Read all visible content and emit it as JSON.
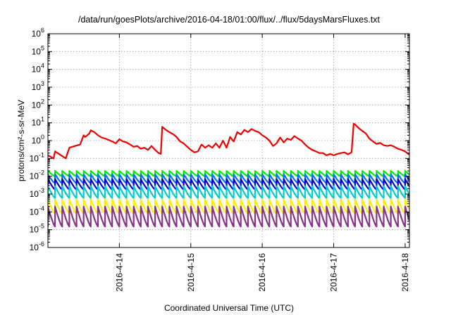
{
  "chart_data": {
    "type": "line",
    "title": "/data/run/goesPlots/archive/2016-04-18/01:00/flux/../flux/5daysMarsFluxes.txt",
    "xlabel": "Coordinated Universal Time (UTC)",
    "ylabel": "protons/cm²-s-sr-MeV",
    "yscale": "log",
    "ylim": [
      1e-06,
      1000000.0
    ],
    "xlim_days": [
      13.0,
      18.06
    ],
    "xaxis_origin_date": "2016-04-13",
    "y_ticks": [
      {
        "v": 1e-06,
        "base": "10",
        "exp": "-6"
      },
      {
        "v": 1e-05,
        "base": "10",
        "exp": "-5"
      },
      {
        "v": 0.0001,
        "base": "10",
        "exp": "-4"
      },
      {
        "v": 0.001,
        "base": "10",
        "exp": "-3"
      },
      {
        "v": 0.01,
        "base": "10",
        "exp": "-2"
      },
      {
        "v": 0.1,
        "base": "10",
        "exp": "-1"
      },
      {
        "v": 1.0,
        "base": "10",
        "exp": "0"
      },
      {
        "v": 10.0,
        "base": "10",
        "exp": "1"
      },
      {
        "v": 100.0,
        "base": "10",
        "exp": "2"
      },
      {
        "v": 1000.0,
        "base": "10",
        "exp": "3"
      },
      {
        "v": 10000.0,
        "base": "10",
        "exp": "4"
      },
      {
        "v": 100000.0,
        "base": "10",
        "exp": "5"
      },
      {
        "v": 1000000.0,
        "base": "10",
        "exp": "6"
      }
    ],
    "x_ticks": [
      {
        "d": 14,
        "label": "2016-4-14"
      },
      {
        "d": 15,
        "label": "2016-4-15"
      },
      {
        "d": 16,
        "label": "2016-4-16"
      },
      {
        "d": 17,
        "label": "2016-4-17"
      },
      {
        "d": 18,
        "label": "2016-4-18"
      }
    ],
    "grid": true,
    "legend": "none",
    "series": [
      {
        "color": "#ee0000",
        "x": [
          13.0,
          13.08,
          13.1,
          13.25,
          13.3,
          13.45,
          13.5,
          13.52,
          13.58,
          13.6,
          13.65,
          13.7,
          13.75,
          13.8,
          13.85,
          13.9,
          13.95,
          14.0,
          14.05,
          14.1,
          14.15,
          14.2,
          14.25,
          14.3,
          14.35,
          14.4,
          14.45,
          14.5,
          14.55,
          14.58,
          14.6,
          14.65,
          14.7,
          14.75,
          14.8,
          14.85,
          14.9,
          14.95,
          15.0,
          15.05,
          15.1,
          15.15,
          15.2,
          15.25,
          15.3,
          15.35,
          15.4,
          15.45,
          15.5,
          15.55,
          15.6,
          15.65,
          15.7,
          15.75,
          15.8,
          15.85,
          15.9,
          15.95,
          16.0,
          16.05,
          16.1,
          16.15,
          16.2,
          16.25,
          16.3,
          16.35,
          16.4,
          16.45,
          16.5,
          16.55,
          16.6,
          16.65,
          16.7,
          16.75,
          16.8,
          16.85,
          16.9,
          16.95,
          17.0,
          17.05,
          17.1,
          17.15,
          17.2,
          17.25,
          17.28,
          17.3,
          17.35,
          17.4,
          17.45,
          17.5,
          17.55,
          17.6,
          17.65,
          17.7,
          17.75,
          17.8,
          17.85,
          17.9,
          17.95,
          18.0,
          18.06
        ],
        "y": [
          0.15,
          0.1,
          0.25,
          0.1,
          0.4,
          0.6,
          2.0,
          1.6,
          2.5,
          3.8,
          3.0,
          2.0,
          1.5,
          1.3,
          1.1,
          0.9,
          0.7,
          1.2,
          0.9,
          0.8,
          0.6,
          0.45,
          0.5,
          0.35,
          0.4,
          0.3,
          0.5,
          0.3,
          0.2,
          0.18,
          6.0,
          4.0,
          3.0,
          2.3,
          1.6,
          0.9,
          0.7,
          0.45,
          0.3,
          0.22,
          0.25,
          0.6,
          0.4,
          0.55,
          0.4,
          0.7,
          0.4,
          1.0,
          0.4,
          1.6,
          0.9,
          3.0,
          2.2,
          4.0,
          3.0,
          4.5,
          3.5,
          3.0,
          2.0,
          1.5,
          1.0,
          0.5,
          0.7,
          1.5,
          0.8,
          1.3,
          1.1,
          1.8,
          1.3,
          1.0,
          0.6,
          0.4,
          0.3,
          0.25,
          0.2,
          0.2,
          0.15,
          0.18,
          0.15,
          0.18,
          0.2,
          0.22,
          0.17,
          0.22,
          9.0,
          8.0,
          5.0,
          3.5,
          2.5,
          1.3,
          0.9,
          0.65,
          0.75,
          0.55,
          0.5,
          0.55,
          0.45,
          0.35,
          0.3,
          0.25,
          0.16
        ]
      }
    ],
    "periodic_series": [
      {
        "color": "#00ee00",
        "low": 0.01,
        "high": 0.02
      },
      {
        "color": "#0070ff",
        "low": 0.004,
        "high": 0.013
      },
      {
        "color": "#0000cc",
        "low": 0.0018,
        "high": 0.007
      },
      {
        "color": "#00cccc",
        "low": 0.0006,
        "high": 0.0028
      },
      {
        "color": "#ffee00",
        "low": 8e-05,
        "high": 0.0005
      },
      {
        "color": "#883388",
        "low": 1.5e-05,
        "high": 0.0002
      }
    ],
    "periodic_pulses_per_day": 10
  }
}
